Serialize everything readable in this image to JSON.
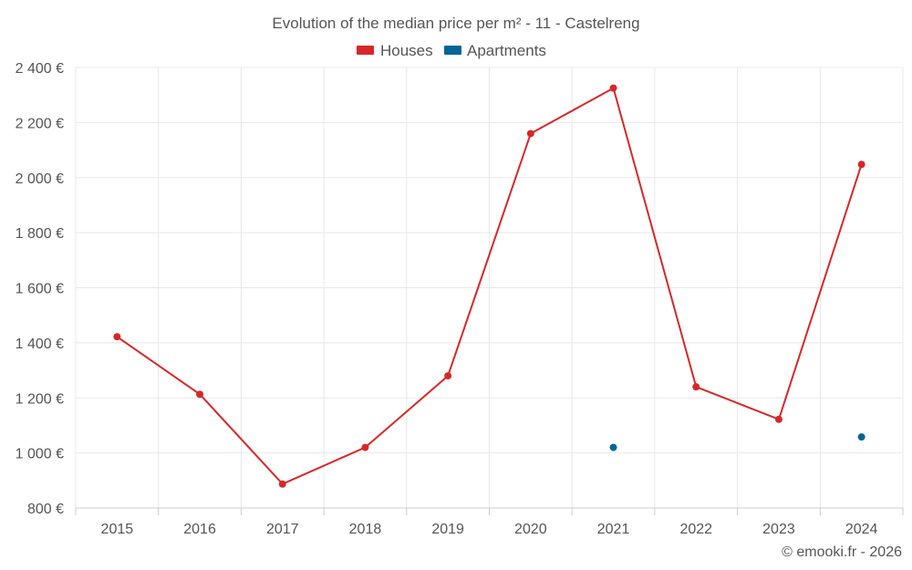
{
  "chart_data": {
    "type": "line",
    "title": "Evolution of the median price per m² - 11 - Castelreng",
    "categories": [
      "2015",
      "2016",
      "2017",
      "2018",
      "2019",
      "2020",
      "2021",
      "2022",
      "2023",
      "2024"
    ],
    "ylim": [
      800,
      2400
    ],
    "yticks": [
      800,
      1000,
      1200,
      1400,
      1600,
      1800,
      2000,
      2200,
      2400
    ],
    "ytick_labels": [
      "800 €",
      "1 000 €",
      "1 200 €",
      "1 400 €",
      "1 600 €",
      "1 800 €",
      "2 000 €",
      "2 200 €",
      "2 400 €"
    ],
    "grid": true,
    "legend_position": "top-center",
    "series": [
      {
        "name": "Houses",
        "color": "#d62828",
        "values": [
          1422,
          1213,
          887,
          1020,
          1280,
          2160,
          2325,
          1240,
          1122,
          2048
        ]
      },
      {
        "name": "Apartments",
        "color": "#006699",
        "values": [
          null,
          null,
          null,
          null,
          null,
          null,
          1020,
          null,
          null,
          1058
        ]
      }
    ]
  },
  "credit": "© emooki.fr - 2026"
}
